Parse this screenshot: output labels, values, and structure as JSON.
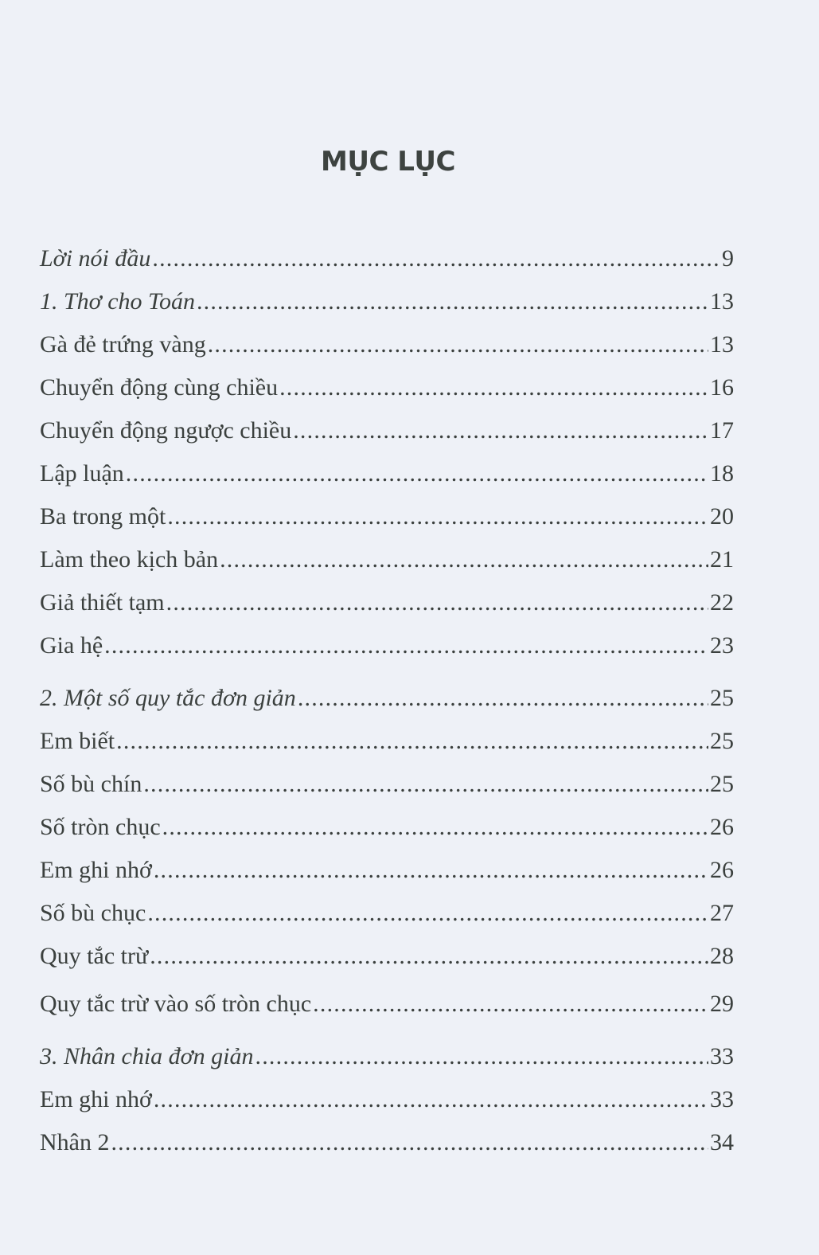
{
  "title": "MỤC LỤC",
  "entries": [
    {
      "label": "Lời nói đầu",
      "page": "9",
      "italic": true
    },
    {
      "label": "1. Thơ cho Toán",
      "page": "13",
      "italic": true
    },
    {
      "label": "Gà đẻ trứng vàng",
      "page": "13",
      "italic": false
    },
    {
      "label": "Chuyển động cùng chiều",
      "page": "16",
      "italic": false
    },
    {
      "label": "Chuyển động ngược chiều",
      "page": "17",
      "italic": false
    },
    {
      "label": "Lập luận",
      "page": "18",
      "italic": false
    },
    {
      "label": "Ba trong một",
      "page": "20",
      "italic": false
    },
    {
      "label": "Làm theo kịch bản",
      "page": "21",
      "italic": false
    },
    {
      "label": "Giả thiết tạm",
      "page": "22",
      "italic": false
    },
    {
      "label": "Gia hệ",
      "page": "23",
      "italic": false
    },
    {
      "label": "2. Một số quy tắc đơn giản",
      "page": "25",
      "italic": true
    },
    {
      "label": "Em biết",
      "page": "25",
      "italic": false
    },
    {
      "label": "Số bù chín",
      "page": "25",
      "italic": false
    },
    {
      "label": "Số tròn chục",
      "page": "26",
      "italic": false
    },
    {
      "label": "Em ghi nhớ",
      "page": "26",
      "italic": false
    },
    {
      "label": "Số bù chục",
      "page": "27",
      "italic": false
    },
    {
      "label": "Quy tắc trừ",
      "page": "28",
      "italic": false
    },
    {
      "label": "Quy tắc trừ vào số tròn chục",
      "page": "29",
      "italic": false
    },
    {
      "label": "3. Nhân chia đơn giản",
      "page": "33",
      "italic": true
    },
    {
      "label": "Em ghi nhớ",
      "page": "33",
      "italic": false
    },
    {
      "label": "Nhân 2",
      "page": "34",
      "italic": false
    }
  ]
}
